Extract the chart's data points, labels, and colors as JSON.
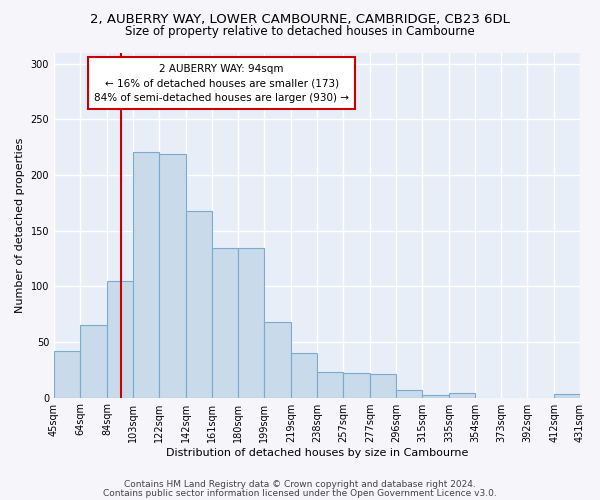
{
  "title1": "2, AUBERRY WAY, LOWER CAMBOURNE, CAMBRIDGE, CB23 6DL",
  "title2": "Size of property relative to detached houses in Cambourne",
  "xlabel": "Distribution of detached houses by size in Cambourne",
  "ylabel": "Number of detached properties",
  "footer1": "Contains HM Land Registry data © Crown copyright and database right 2024.",
  "footer2": "Contains public sector information licensed under the Open Government Licence v3.0.",
  "annotation_title": "2 AUBERRY WAY: 94sqm",
  "annotation_line1": "← 16% of detached houses are smaller (173)",
  "annotation_line2": "84% of semi-detached houses are larger (930) →",
  "property_size": 94,
  "bar_color": "#c9daea",
  "bar_edge_color": "#7aaacf",
  "vline_color": "#cc0000",
  "background_color": "#e8eef8",
  "grid_color": "#ffffff",
  "bin_edges": [
    45,
    64,
    84,
    103,
    122,
    142,
    161,
    180,
    199,
    219,
    238,
    257,
    277,
    296,
    315,
    335,
    354,
    373,
    392,
    412,
    431
  ],
  "bar_heights": [
    42,
    65,
    105,
    221,
    219,
    168,
    134,
    134,
    68,
    40,
    23,
    22,
    21,
    7,
    2,
    4,
    0,
    0,
    0,
    3
  ],
  "ylim": [
    0,
    310
  ],
  "yticks": [
    0,
    50,
    100,
    150,
    200,
    250,
    300
  ],
  "title1_fontsize": 9.5,
  "title2_fontsize": 8.5,
  "annotation_fontsize": 7.5,
  "xlabel_fontsize": 8,
  "ylabel_fontsize": 8,
  "tick_fontsize": 7,
  "footer_fontsize": 6.5
}
